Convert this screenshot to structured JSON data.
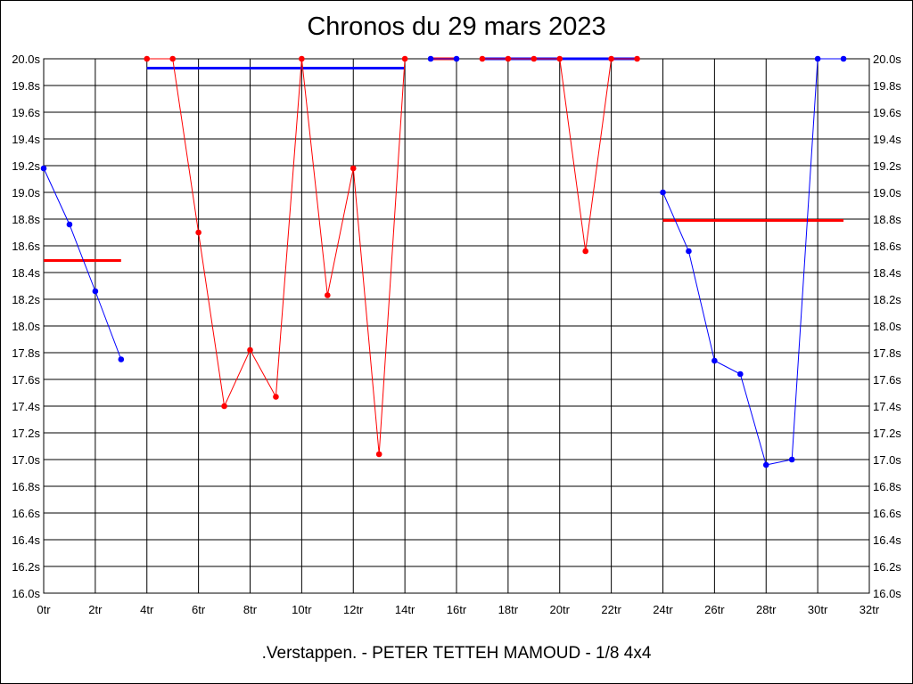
{
  "chart_data": {
    "type": "line",
    "title": "Chronos du 29 mars 2023",
    "subtitle": ".Verstappen. - PETER TETTEH MAMOUD - 1/8 4x4",
    "xlim": [
      0,
      32
    ],
    "ylim": [
      16.0,
      20.0
    ],
    "x_ticks": [
      0,
      2,
      4,
      6,
      8,
      10,
      12,
      14,
      16,
      18,
      20,
      22,
      24,
      26,
      28,
      30,
      32
    ],
    "x_tick_labels": [
      "0tr",
      "2tr",
      "4tr",
      "6tr",
      "8tr",
      "10tr",
      "12tr",
      "14tr",
      "16tr",
      "18tr",
      "20tr",
      "22tr",
      "24tr",
      "26tr",
      "28tr",
      "30tr",
      "32tr"
    ],
    "y_ticks": [
      16.0,
      16.2,
      16.4,
      16.6,
      16.8,
      17.0,
      17.2,
      17.4,
      17.6,
      17.8,
      18.0,
      18.2,
      18.4,
      18.6,
      18.8,
      19.0,
      19.2,
      19.4,
      19.6,
      19.8,
      20.0
    ],
    "y_tick_labels": [
      "16.0s",
      "16.2s",
      "16.4s",
      "16.6s",
      "16.8s",
      "17.0s",
      "17.2s",
      "17.4s",
      "17.6s",
      "17.8s",
      "18.0s",
      "18.2s",
      "18.4s",
      "18.6s",
      "18.8s",
      "19.0s",
      "19.2s",
      "19.4s",
      "19.6s",
      "19.8s",
      "20.0s"
    ],
    "grid": true,
    "series": [
      {
        "color": "#0000ff",
        "points": [
          [
            0,
            19.18
          ],
          [
            1,
            18.76
          ],
          [
            2,
            18.26
          ],
          [
            3,
            17.75
          ]
        ]
      },
      {
        "color": "#ff0000",
        "points": [
          [
            4,
            20.0
          ],
          [
            5,
            20.0
          ],
          [
            6,
            18.7
          ],
          [
            7,
            17.4
          ],
          [
            8,
            17.82
          ],
          [
            9,
            17.47
          ],
          [
            10,
            20.0
          ],
          [
            11,
            18.23
          ],
          [
            12,
            19.18
          ],
          [
            13,
            17.04
          ],
          [
            14,
            20.0
          ]
        ]
      },
      {
        "color": "#0000ff",
        "points": [
          [
            15,
            20.0
          ],
          [
            16,
            20.0
          ]
        ]
      },
      {
        "color": "#ff0000",
        "points": [
          [
            17,
            20.0
          ],
          [
            18,
            20.0
          ],
          [
            19,
            20.0
          ],
          [
            20,
            20.0
          ],
          [
            21,
            18.56
          ],
          [
            22,
            20.0
          ],
          [
            23,
            20.0
          ]
        ]
      },
      {
        "color": "#0000ff",
        "points": [
          [
            24,
            19.0
          ],
          [
            25,
            18.56
          ],
          [
            26,
            17.74
          ],
          [
            27,
            17.64
          ],
          [
            28,
            16.96
          ],
          [
            29,
            17.0
          ],
          [
            30,
            20.0
          ],
          [
            31,
            20.0
          ]
        ]
      }
    ],
    "averages": [
      {
        "color": "#ff0000",
        "x": [
          0,
          3
        ],
        "y": 18.49
      },
      {
        "color": "#0000ff",
        "x": [
          4,
          14
        ],
        "y": 19.93
      },
      {
        "color": "#ff0000",
        "x": [
          15,
          16
        ],
        "y": 20.0
      },
      {
        "color": "#0000ff",
        "x": [
          17,
          23
        ],
        "y": 20.0
      },
      {
        "color": "#ff0000",
        "x": [
          24,
          31
        ],
        "y": 18.79
      }
    ]
  }
}
